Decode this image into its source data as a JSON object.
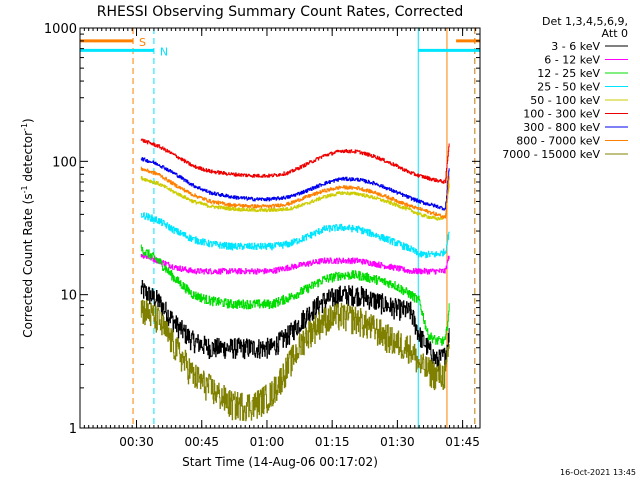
{
  "chart_data": {
    "type": "line",
    "title": "RHESSI Observing Summary Count Rates, Corrected",
    "xlabel": "Start Time (14-Aug-06 00:17:02)",
    "ylabel_main": "Corrected Count Rate (s",
    "ylabel_sup1": "-1",
    "ylabel_mid": " detector",
    "ylabel_sup2": "-1",
    "ylabel_end": ")",
    "x_unit": "minutes after 00:17:02",
    "xlim": [
      0,
      92
    ],
    "ylim": [
      1,
      1000
    ],
    "yscale": "log",
    "x_ticks": [
      {
        "x": 13,
        "label": "00:30"
      },
      {
        "x": 28,
        "label": "00:45"
      },
      {
        "x": 43,
        "label": "01:00"
      },
      {
        "x": 58,
        "label": "01:15"
      },
      {
        "x": 73,
        "label": "01:30"
      },
      {
        "x": 88,
        "label": "01:45"
      }
    ],
    "y_ticks": [
      {
        "y": 1,
        "label": "1"
      },
      {
        "y": 10,
        "label": "10"
      },
      {
        "y": 100,
        "label": "100"
      },
      {
        "y": 1000,
        "label": "1000"
      }
    ],
    "legend_header": [
      "Det 1,3,4,5,6,9,",
      "Att 0"
    ],
    "legend_position": "right",
    "footer_date": "16-Oct-2021 13:45",
    "markers": [
      {
        "label": "S",
        "x": 12.2,
        "color": "#ff8000"
      },
      {
        "label": "N",
        "x": 17.0,
        "color": "#00e5ff"
      }
    ],
    "flags": [
      {
        "x_start": 0,
        "x_end": 12.2,
        "y": 800,
        "color": "#ff8000"
      },
      {
        "x_start": 0,
        "x_end": 17.0,
        "y": 680,
        "color": "#00e5ff"
      },
      {
        "x_start": 77.8,
        "x_end": 92,
        "y": 680,
        "color": "#00e5ff"
      },
      {
        "x_start": 86.5,
        "x_end": 92,
        "y": 800,
        "color": "#ff8000"
      }
    ],
    "vlines": [
      {
        "x": 12.2,
        "color": "#ff8000",
        "dash": true
      },
      {
        "x": 17.0,
        "color": "#00e5ff",
        "dash": true
      },
      {
        "x": 77.8,
        "color": "#00e5ff",
        "dash": false
      },
      {
        "x": 84.4,
        "color": "#ff8000",
        "dash": false
      },
      {
        "x": 90.8,
        "color": "#00e5ff",
        "dash": true
      },
      {
        "x": 90.8,
        "color": "#ff8000",
        "dash": true
      }
    ],
    "series": [
      {
        "name": "3 - 6 keV",
        "color": "#000000",
        "noise": 0.18,
        "points": [
          [
            14,
            11
          ],
          [
            18,
            9
          ],
          [
            22,
            6
          ],
          [
            26,
            4.5
          ],
          [
            30,
            4
          ],
          [
            35,
            4
          ],
          [
            40,
            4
          ],
          [
            44,
            4
          ],
          [
            48,
            5
          ],
          [
            52,
            7
          ],
          [
            56,
            9
          ],
          [
            60,
            10
          ],
          [
            64,
            10
          ],
          [
            68,
            9
          ],
          [
            72,
            8
          ],
          [
            76,
            7.5
          ],
          [
            78,
            5
          ],
          [
            82,
            3.2
          ],
          [
            84,
            3.5
          ],
          [
            84.9,
            5
          ]
        ]
      },
      {
        "name": "6 - 12 keV",
        "color": "#ff00ff",
        "noise": 0.05,
        "points": [
          [
            14,
            20
          ],
          [
            18,
            18
          ],
          [
            22,
            16
          ],
          [
            26,
            15
          ],
          [
            30,
            15
          ],
          [
            35,
            15
          ],
          [
            40,
            15
          ],
          [
            44,
            15
          ],
          [
            48,
            16
          ],
          [
            52,
            17
          ],
          [
            56,
            18
          ],
          [
            60,
            18
          ],
          [
            64,
            18
          ],
          [
            68,
            17
          ],
          [
            72,
            16
          ],
          [
            76,
            15
          ],
          [
            78,
            15
          ],
          [
            82,
            15
          ],
          [
            84,
            15
          ],
          [
            84.9,
            20
          ]
        ]
      },
      {
        "name": "12 - 25 keV",
        "color": "#00dd00",
        "noise": 0.08,
        "points": [
          [
            14,
            22
          ],
          [
            18,
            18
          ],
          [
            22,
            13
          ],
          [
            26,
            10
          ],
          [
            30,
            9
          ],
          [
            35,
            8.5
          ],
          [
            40,
            8.5
          ],
          [
            44,
            8.5
          ],
          [
            48,
            9.5
          ],
          [
            52,
            11
          ],
          [
            56,
            13
          ],
          [
            60,
            14
          ],
          [
            64,
            14
          ],
          [
            68,
            13
          ],
          [
            72,
            12
          ],
          [
            76,
            10
          ],
          [
            78,
            9
          ],
          [
            80,
            5
          ],
          [
            82,
            4.5
          ],
          [
            84,
            4.5
          ],
          [
            84.9,
            8
          ]
        ]
      },
      {
        "name": "25 - 50 keV",
        "color": "#00e5ff",
        "noise": 0.06,
        "points": [
          [
            14,
            40
          ],
          [
            18,
            36
          ],
          [
            22,
            30
          ],
          [
            26,
            26
          ],
          [
            30,
            24
          ],
          [
            35,
            23
          ],
          [
            40,
            23
          ],
          [
            44,
            23
          ],
          [
            48,
            24
          ],
          [
            52,
            27
          ],
          [
            56,
            31
          ],
          [
            60,
            32
          ],
          [
            64,
            31
          ],
          [
            68,
            28
          ],
          [
            72,
            25
          ],
          [
            76,
            22
          ],
          [
            78,
            20
          ],
          [
            82,
            20
          ],
          [
            84,
            21
          ],
          [
            84.9,
            30
          ]
        ]
      },
      {
        "name": "50 - 100 keV",
        "color": "#cccc00",
        "noise": 0.03,
        "points": [
          [
            14,
            75
          ],
          [
            18,
            68
          ],
          [
            22,
            58
          ],
          [
            26,
            50
          ],
          [
            30,
            46
          ],
          [
            35,
            44
          ],
          [
            40,
            43
          ],
          [
            44,
            43
          ],
          [
            48,
            44
          ],
          [
            52,
            48
          ],
          [
            56,
            54
          ],
          [
            60,
            58
          ],
          [
            64,
            57
          ],
          [
            68,
            53
          ],
          [
            72,
            48
          ],
          [
            76,
            43
          ],
          [
            78,
            40
          ],
          [
            82,
            37
          ],
          [
            84,
            38
          ],
          [
            84.9,
            70
          ]
        ]
      },
      {
        "name": "100 - 300 keV",
        "color": "#ee0000",
        "noise": 0.03,
        "points": [
          [
            14,
            145
          ],
          [
            18,
            130
          ],
          [
            22,
            110
          ],
          [
            26,
            92
          ],
          [
            30,
            84
          ],
          [
            35,
            80
          ],
          [
            40,
            78
          ],
          [
            44,
            78
          ],
          [
            48,
            82
          ],
          [
            52,
            95
          ],
          [
            56,
            110
          ],
          [
            60,
            120
          ],
          [
            64,
            118
          ],
          [
            68,
            108
          ],
          [
            72,
            95
          ],
          [
            76,
            82
          ],
          [
            78,
            78
          ],
          [
            82,
            72
          ],
          [
            84,
            70
          ],
          [
            84.9,
            140
          ]
        ]
      },
      {
        "name": "300 - 800 keV",
        "color": "#0000ee",
        "noise": 0.03,
        "points": [
          [
            14,
            105
          ],
          [
            18,
            95
          ],
          [
            22,
            80
          ],
          [
            26,
            66
          ],
          [
            30,
            58
          ],
          [
            35,
            54
          ],
          [
            40,
            52
          ],
          [
            44,
            52
          ],
          [
            48,
            54
          ],
          [
            52,
            60
          ],
          [
            56,
            68
          ],
          [
            60,
            74
          ],
          [
            64,
            73
          ],
          [
            68,
            68
          ],
          [
            72,
            60
          ],
          [
            76,
            53
          ],
          [
            78,
            50
          ],
          [
            82,
            46
          ],
          [
            84,
            44
          ],
          [
            84.9,
            90
          ]
        ]
      },
      {
        "name": "800 - 7000 keV",
        "color": "#ff8000",
        "noise": 0.03,
        "points": [
          [
            14,
            88
          ],
          [
            18,
            80
          ],
          [
            22,
            66
          ],
          [
            26,
            56
          ],
          [
            30,
            50
          ],
          [
            35,
            47
          ],
          [
            40,
            46
          ],
          [
            44,
            46
          ],
          [
            48,
            48
          ],
          [
            52,
            54
          ],
          [
            56,
            60
          ],
          [
            60,
            64
          ],
          [
            64,
            63
          ],
          [
            68,
            58
          ],
          [
            72,
            52
          ],
          [
            76,
            46
          ],
          [
            78,
            44
          ],
          [
            82,
            40
          ],
          [
            84,
            38
          ],
          [
            84.9,
            80
          ]
        ]
      },
      {
        "name": "7000 - 15000 keV",
        "color": "#808000",
        "noise": 0.25,
        "points": [
          [
            14,
            8
          ],
          [
            18,
            6.5
          ],
          [
            22,
            4
          ],
          [
            26,
            2.5
          ],
          [
            30,
            2
          ],
          [
            35,
            1.5
          ],
          [
            40,
            1.5
          ],
          [
            44,
            1.8
          ],
          [
            48,
            3
          ],
          [
            52,
            5
          ],
          [
            56,
            6.5
          ],
          [
            60,
            7
          ],
          [
            64,
            6.5
          ],
          [
            68,
            5.5
          ],
          [
            72,
            4.5
          ],
          [
            76,
            4
          ],
          [
            78,
            3
          ],
          [
            82,
            2.5
          ],
          [
            84,
            2.5
          ],
          [
            84.9,
            4
          ]
        ]
      }
    ]
  }
}
